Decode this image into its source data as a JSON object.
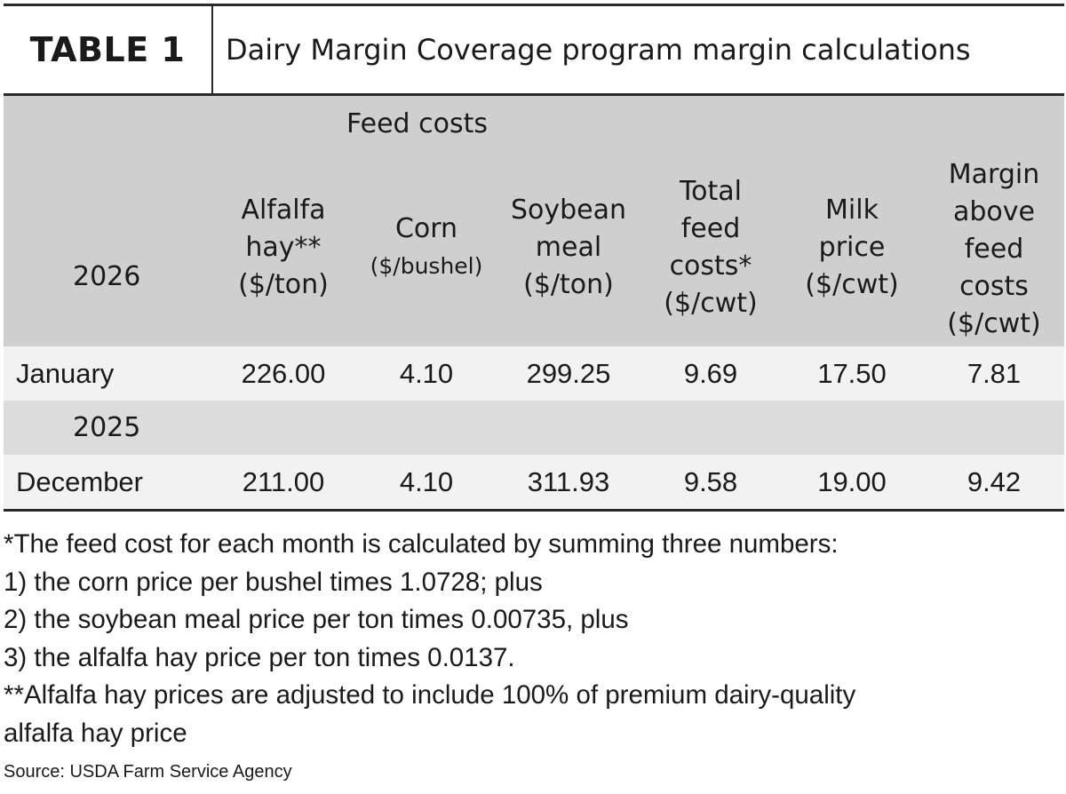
{
  "title": {
    "label": "TABLE 1",
    "text": "Dairy Margin Coverage program margin calculations"
  },
  "header": {
    "group_label": "Feed costs",
    "year": "2026",
    "columns": [
      {
        "line1": "Alfalfa",
        "line2": "hay**",
        "line3": "($/ton)"
      },
      {
        "line1": "Corn",
        "line2": "($/bushel)"
      },
      {
        "line1": "Soybean",
        "line2": "meal",
        "line3": "($/ton)"
      },
      {
        "line1": "Total",
        "line2": "feed",
        "line3": "costs*",
        "line4": "($/cwt)"
      },
      {
        "line1": "Milk",
        "line2": "price",
        "line3": "($/cwt)"
      },
      {
        "line1": "Margin",
        "line2": "above",
        "line3": "feed",
        "line4": "costs",
        "line5": "($/cwt)"
      }
    ]
  },
  "rows": [
    {
      "month": "January",
      "values": [
        "226.00",
        "4.10",
        "299.25",
        "9.69",
        "17.50",
        "7.81"
      ]
    },
    {
      "year": "2025"
    },
    {
      "month": "December",
      "values": [
        "211.00",
        "4.10",
        "311.93",
        "9.58",
        "19.00",
        "9.42"
      ]
    }
  ],
  "notes": [
    "*The feed cost for each month is calculated by summing three numbers:",
    "1) the corn price per bushel times 1.0728; plus",
    "2) the soybean meal price per ton times 0.00735, plus",
    "3) the alfalfa hay price per ton times 0.0137.",
    "**Alfalfa hay prices are adjusted to include 100% of premium dairy-quality",
    "alfalfa hay price"
  ],
  "source": "Source: USDA Farm Service Agency"
}
